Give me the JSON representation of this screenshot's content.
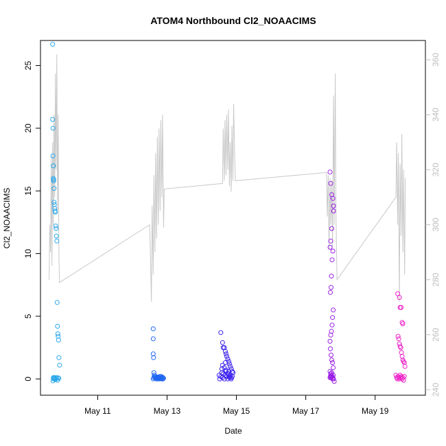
{
  "chart_data": {
    "type": "scatter",
    "title": "ATOM4 Northbound Cl2_NOAACIMS",
    "xlabel": "Date",
    "ylabel": "Cl2_NOAACIMS",
    "x_ticks": [
      "May 11",
      "May 13",
      "May 15",
      "May 17",
      "May 19"
    ],
    "x_tick_days": [
      11,
      13,
      15,
      17,
      19
    ],
    "xlim_days": [
      9.35,
      20.45
    ],
    "ylim": [
      -1.3,
      27.0
    ],
    "y_ticks": [
      0,
      5,
      10,
      15,
      20,
      25
    ],
    "y2_label": "",
    "y2lim": [
      238,
      367
    ],
    "y2_ticks": [
      240,
      260,
      280,
      300,
      320,
      340,
      360
    ],
    "grid": false,
    "legend": "none",
    "colors": {
      "axis": "#000000",
      "right_axis": "#bdbdbd",
      "line": "#c8c8c8",
      "seg1": "#2ba8ec",
      "seg2": "#1f66f2",
      "seg3": "#3a1ff0",
      "seg4": "#9a1fe6",
      "seg5": "#ee1fc8"
    },
    "series": [
      {
        "x": [
          9.7,
          9.7,
          9.71,
          9.71,
          9.72,
          9.72,
          9.72,
          9.73,
          9.73,
          9.74,
          9.74,
          9.75,
          9.76,
          9.77,
          9.78,
          9.79,
          9.8,
          9.81,
          9.82,
          9.83,
          9.84,
          9.85,
          9.86,
          9.87,
          9.88,
          9.9,
          9.72,
          9.74,
          9.76,
          9.78,
          9.8,
          9.82,
          9.84,
          9.86,
          9.88,
          9.71,
          9.73,
          9.75
        ],
        "y": [
          26.7,
          20.7,
          20.0,
          17.8,
          17.0,
          17.0,
          16.0,
          15.8,
          15.9,
          15.2,
          14.1,
          13.9,
          13.6,
          13.4,
          13.3,
          12.2,
          12.0,
          11.4,
          11.0,
          6.1,
          4.2,
          3.6,
          3.4,
          3.1,
          1.7,
          1.1,
          0.1,
          0.05,
          0.0,
          -0.05,
          0.02,
          0.1,
          -0.1,
          0.08,
          0.05,
          -0.15,
          0.0,
          0.12
        ]
      },
      {
        "x": [
          12.6,
          12.6,
          12.6,
          12.61,
          12.62,
          12.63,
          12.65,
          12.67,
          12.7,
          12.72,
          12.75,
          12.78,
          12.8,
          12.82,
          12.85,
          12.88,
          12.9,
          12.6,
          12.62,
          12.64,
          12.66,
          12.68,
          12.7,
          12.72,
          12.74,
          12.76,
          12.78,
          12.8,
          12.82,
          12.84,
          12.86,
          12.88
        ],
        "y": [
          4.0,
          3.2,
          2.0,
          1.7,
          0.5,
          0.3,
          0.2,
          0.2,
          0.1,
          0.0,
          0.15,
          0.05,
          0.1,
          0.2,
          0.0,
          0.1,
          0.05,
          0.0,
          0.1,
          0.2,
          0.05,
          0.1,
          0.0,
          0.15,
          0.05,
          0.1,
          0.0,
          0.2,
          0.1,
          0.05,
          0.15,
          0.0
        ]
      },
      {
        "x": [
          14.55,
          14.6,
          14.62,
          14.65,
          14.68,
          14.7,
          14.72,
          14.75,
          14.78,
          14.8,
          14.82,
          14.85,
          14.88,
          14.9,
          14.5,
          14.52,
          14.55,
          14.58,
          14.6,
          14.62,
          14.65,
          14.68,
          14.7,
          14.72,
          14.75,
          14.78,
          14.8,
          14.82,
          14.85,
          14.88,
          14.9,
          14.6,
          14.65,
          14.7,
          14.75,
          14.8,
          14.85,
          14.58,
          14.68,
          14.78
        ],
        "y": [
          3.7,
          2.9,
          2.5,
          2.5,
          2.2,
          2.0,
          1.8,
          1.6,
          1.4,
          1.2,
          1.0,
          0.8,
          0.6,
          0.5,
          0.3,
          0.0,
          0.2,
          0.5,
          0.1,
          0.4,
          0.0,
          0.3,
          0.6,
          0.2,
          0.0,
          0.4,
          0.1,
          0.3,
          0.0,
          0.2,
          0.5,
          1.1,
          0.9,
          0.7,
          0.4,
          0.2,
          0.1,
          0.8,
          1.3,
          0.6
        ]
      },
      {
        "x": [
          17.7,
          17.72,
          17.75,
          17.78,
          17.8,
          17.8,
          17.75,
          17.72,
          17.7,
          17.78,
          17.76,
          17.74,
          17.73,
          17.71,
          17.79,
          17.77,
          17.76,
          17.74,
          17.72,
          17.7,
          17.71,
          17.73,
          17.75,
          17.77,
          17.79,
          17.7,
          17.72,
          17.74,
          17.76,
          17.78,
          17.8,
          17.82,
          17.75,
          17.73,
          17.71,
          17.77,
          17.79,
          17.7,
          17.72,
          17.74
        ],
        "y": [
          16.5,
          15.6,
          14.7,
          14.4,
          13.8,
          13.4,
          12.0,
          11.0,
          10.5,
          10.2,
          9.5,
          8.2,
          7.3,
          6.9,
          5.5,
          4.9,
          4.3,
          3.8,
          3.5,
          3.0,
          2.4,
          1.9,
          1.5,
          1.3,
          0.9,
          0.6,
          0.4,
          0.3,
          0.2,
          0.1,
          0.0,
          -0.2,
          0.5,
          0.1,
          0.2,
          0.0,
          0.3,
          0.1,
          0.4,
          0.2
        ]
      },
      {
        "x": [
          19.65,
          19.7,
          19.72,
          19.75,
          19.78,
          19.8,
          19.66,
          19.68,
          19.7,
          19.72,
          19.74,
          19.76,
          19.78,
          19.8,
          19.82,
          19.84,
          19.86,
          19.6,
          19.62,
          19.64,
          19.66,
          19.68,
          19.7,
          19.72,
          19.74,
          19.76,
          19.78,
          19.8,
          19.82,
          19.84
        ],
        "y": [
          6.8,
          6.5,
          5.7,
          5.7,
          4.5,
          4.4,
          3.4,
          3.2,
          2.8,
          2.6,
          2.5,
          2.1,
          1.8,
          1.5,
          1.4,
          1.3,
          1.0,
          0.3,
          0.1,
          0.0,
          0.2,
          0.1,
          0.0,
          0.3,
          0.1,
          0.2,
          0.0,
          0.1,
          -0.1,
          0.2
        ]
      }
    ],
    "secondary_line": {
      "name": "",
      "x": [
        9.6,
        9.62,
        9.64,
        9.66,
        9.68,
        9.7,
        9.72,
        9.74,
        9.76,
        9.78,
        9.8,
        9.82,
        9.84,
        9.86,
        9.88,
        9.9,
        12.5,
        12.55,
        12.57,
        12.6,
        12.62,
        12.65,
        12.67,
        12.7,
        12.72,
        12.75,
        12.77,
        12.8,
        12.82,
        12.85,
        12.87,
        12.9,
        12.92,
        14.6,
        14.62,
        14.65,
        14.67,
        14.7,
        14.72,
        14.75,
        14.77,
        14.8,
        14.82,
        14.85,
        14.87,
        14.9,
        14.92,
        14.95,
        14.97,
        17.6,
        17.62,
        17.65,
        17.67,
        17.7,
        17.72,
        17.75,
        17.77,
        17.8,
        17.82,
        17.85,
        17.87,
        17.9,
        19.6,
        19.62,
        19.65,
        19.67,
        19.7,
        19.72,
        19.75,
        19.77,
        19.8,
        19.82,
        19.85,
        19.87
      ],
      "y": [
        280,
        300,
        290,
        325,
        285,
        330,
        300,
        340,
        310,
        355,
        320,
        362,
        305,
        340,
        290,
        279,
        300,
        272,
        307,
        282,
        318,
        290,
        326,
        295,
        332,
        300,
        335,
        305,
        338,
        310,
        340,
        299,
        313,
        315,
        335,
        316,
        338,
        318,
        340,
        320,
        342,
        314,
        330,
        312,
        336,
        316,
        344,
        325,
        316,
        319,
        303,
        318,
        291,
        317,
        300,
        316,
        292,
        347,
        300,
        355,
        305,
        280,
        310,
        330,
        300,
        326,
        272,
        322,
        296,
        333,
        290,
        320,
        282,
        317
      ]
    }
  }
}
